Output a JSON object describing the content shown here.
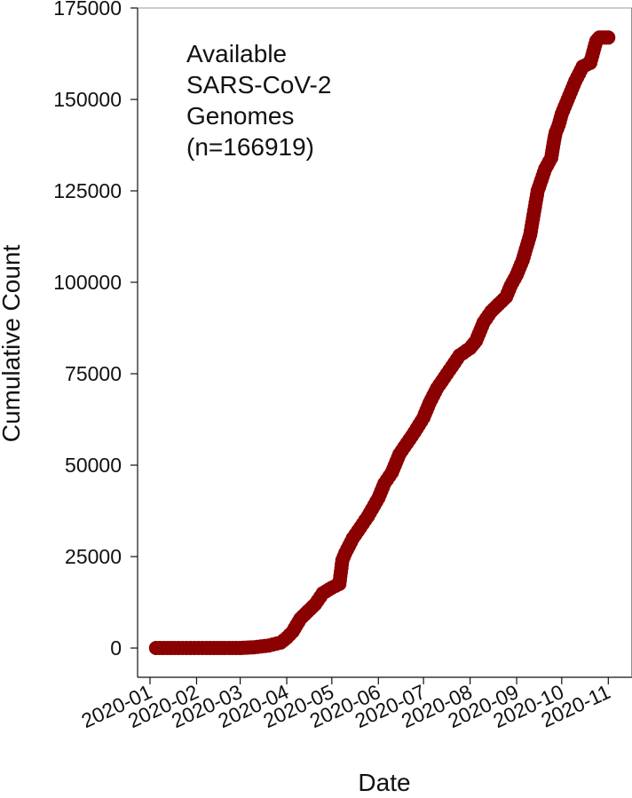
{
  "chart_data": {
    "type": "line",
    "title": "",
    "xlabel": "Date",
    "ylabel": "Cumulative Count",
    "x_ticks": [
      "2020-01",
      "2020-02",
      "2020-03",
      "2020-04",
      "2020-05",
      "2020-06",
      "2020-07",
      "2020-08",
      "2020-09",
      "2020-10",
      "2020-11"
    ],
    "x_range": [
      "2020-01-01",
      "2020-11-02"
    ],
    "y_ticks": [
      "0",
      "25000",
      "50000",
      "75000",
      "100000",
      "125000",
      "150000",
      "175000"
    ],
    "ylim": [
      -8000,
      175000
    ],
    "grid": false,
    "legend": "none",
    "annotation": [
      "Available",
      "SARS-CoV-2",
      "Genomes",
      "(n=166919)"
    ],
    "series": [
      {
        "color": "#8b0000",
        "marker": "circle",
        "x": [
          "2020-01-05",
          "2020-01-20",
          "2020-02-05",
          "2020-02-20",
          "2020-03-01",
          "2020-03-10",
          "2020-03-20",
          "2020-03-28",
          "2020-04-01",
          "2020-04-05",
          "2020-04-10",
          "2020-04-15",
          "2020-04-20",
          "2020-04-25",
          "2020-05-01",
          "2020-05-06",
          "2020-05-08",
          "2020-05-10",
          "2020-05-15",
          "2020-05-20",
          "2020-05-25",
          "2020-06-01",
          "2020-06-05",
          "2020-06-10",
          "2020-06-15",
          "2020-06-20",
          "2020-06-25",
          "2020-07-01",
          "2020-07-05",
          "2020-07-10",
          "2020-07-15",
          "2020-07-20",
          "2020-07-25",
          "2020-08-01",
          "2020-08-05",
          "2020-08-10",
          "2020-08-15",
          "2020-08-20",
          "2020-08-25",
          "2020-08-28",
          "2020-09-01",
          "2020-09-05",
          "2020-09-10",
          "2020-09-15",
          "2020-09-20",
          "2020-09-24",
          "2020-09-26",
          "2020-09-27",
          "2020-09-29",
          "2020-10-01",
          "2020-10-05",
          "2020-10-10",
          "2020-10-15",
          "2020-10-20",
          "2020-10-24",
          "2020-10-26",
          "2020-11-01"
        ],
        "y": [
          0,
          0,
          0,
          0,
          0,
          200,
          700,
          1500,
          2800,
          4500,
          8000,
          10000,
          12000,
          15000,
          16500,
          17500,
          24000,
          26000,
          30000,
          33000,
          36000,
          41000,
          45000,
          48000,
          53000,
          56000,
          59000,
          63000,
          67000,
          71000,
          74000,
          77000,
          80000,
          82000,
          84000,
          89000,
          92000,
          94000,
          96000,
          99000,
          102000,
          106000,
          113000,
          125000,
          131000,
          134000,
          139000,
          141000,
          143000,
          146000,
          150000,
          155000,
          159000,
          160000,
          166000,
          166919,
          166919
        ]
      }
    ]
  }
}
